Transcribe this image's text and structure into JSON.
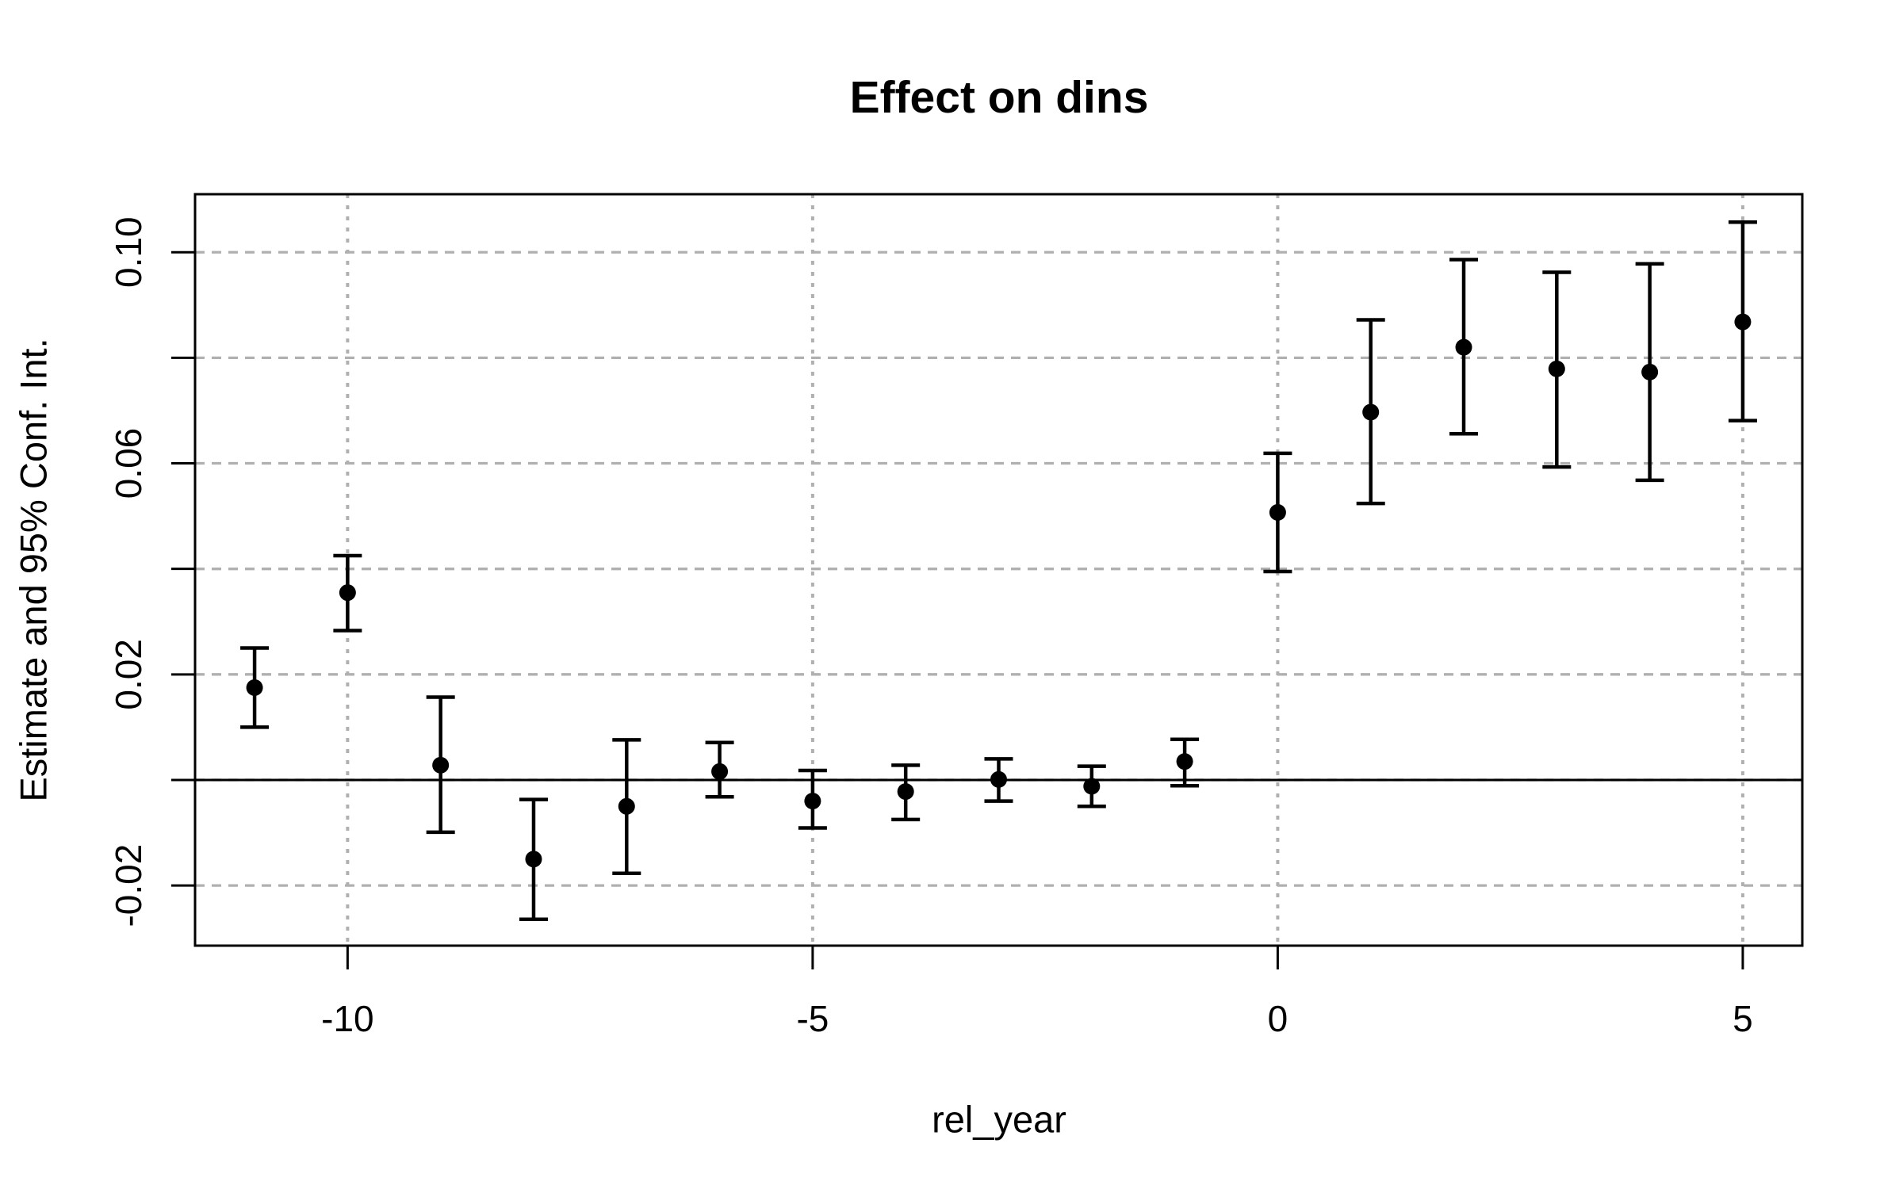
{
  "title": "Effect on dins",
  "chart_data": {
    "type": "scatter",
    "subtype": "point-estimates-with-95pct-confidence-intervals",
    "title": "Effect on dins",
    "xlabel": "rel_year",
    "ylabel": "Estimate and 95% Conf. Int.",
    "xlim": [
      -11.64,
      5.64
    ],
    "ylim": [
      -0.0314,
      0.111
    ],
    "grid": true,
    "legend": "none",
    "zero_reference_line": 0,
    "x_ticks": [
      {
        "value": -10,
        "label": "-10"
      },
      {
        "value": -5,
        "label": "-5"
      },
      {
        "value": 0,
        "label": "0"
      },
      {
        "value": 5,
        "label": "5"
      }
    ],
    "y_ticks": [
      {
        "value": -0.02,
        "label": "-0.02"
      },
      {
        "value": 0.0,
        "label": ""
      },
      {
        "value": 0.02,
        "label": "0.02"
      },
      {
        "value": 0.04,
        "label": ""
      },
      {
        "value": 0.06,
        "label": "0.06"
      },
      {
        "value": 0.08,
        "label": ""
      },
      {
        "value": 0.1,
        "label": "0.10"
      }
    ],
    "points": [
      {
        "x": -11,
        "estimate": 0.0175,
        "ci_low": 0.01,
        "ci_high": 0.025
      },
      {
        "x": -10,
        "estimate": 0.0355,
        "ci_low": 0.0283,
        "ci_high": 0.0425
      },
      {
        "x": -9,
        "estimate": 0.0028,
        "ci_low": -0.0099,
        "ci_high": 0.0157
      },
      {
        "x": -8,
        "estimate": -0.015,
        "ci_low": -0.0264,
        "ci_high": -0.0037
      },
      {
        "x": -7,
        "estimate": -0.005,
        "ci_low": -0.0177,
        "ci_high": 0.0076
      },
      {
        "x": -6,
        "estimate": 0.0016,
        "ci_low": -0.0032,
        "ci_high": 0.0071
      },
      {
        "x": -5,
        "estimate": -0.004,
        "ci_low": -0.0091,
        "ci_high": 0.0018
      },
      {
        "x": -4,
        "estimate": -0.0022,
        "ci_low": -0.0075,
        "ci_high": 0.0028
      },
      {
        "x": -3,
        "estimate": 0.0001,
        "ci_low": -0.004,
        "ci_high": 0.004
      },
      {
        "x": -2,
        "estimate": -0.0012,
        "ci_low": -0.005,
        "ci_high": 0.0026
      },
      {
        "x": -1,
        "estimate": 0.0035,
        "ci_low": -0.0011,
        "ci_high": 0.0077
      },
      {
        "x": 0,
        "estimate": 0.0507,
        "ci_low": 0.0395,
        "ci_high": 0.0619
      },
      {
        "x": 1,
        "estimate": 0.0697,
        "ci_low": 0.0524,
        "ci_high": 0.0872
      },
      {
        "x": 2,
        "estimate": 0.082,
        "ci_low": 0.0656,
        "ci_high": 0.0986
      },
      {
        "x": 3,
        "estimate": 0.0779,
        "ci_low": 0.0593,
        "ci_high": 0.0962
      },
      {
        "x": 4,
        "estimate": 0.0773,
        "ci_low": 0.0568,
        "ci_high": 0.0978
      },
      {
        "x": 5,
        "estimate": 0.0868,
        "ci_low": 0.0681,
        "ci_high": 0.1057
      }
    ],
    "colors": {
      "point": "#000000",
      "error_bar": "#000000",
      "axis": "#000000",
      "grid": "#b0b0b0",
      "background": "#ffffff"
    }
  }
}
